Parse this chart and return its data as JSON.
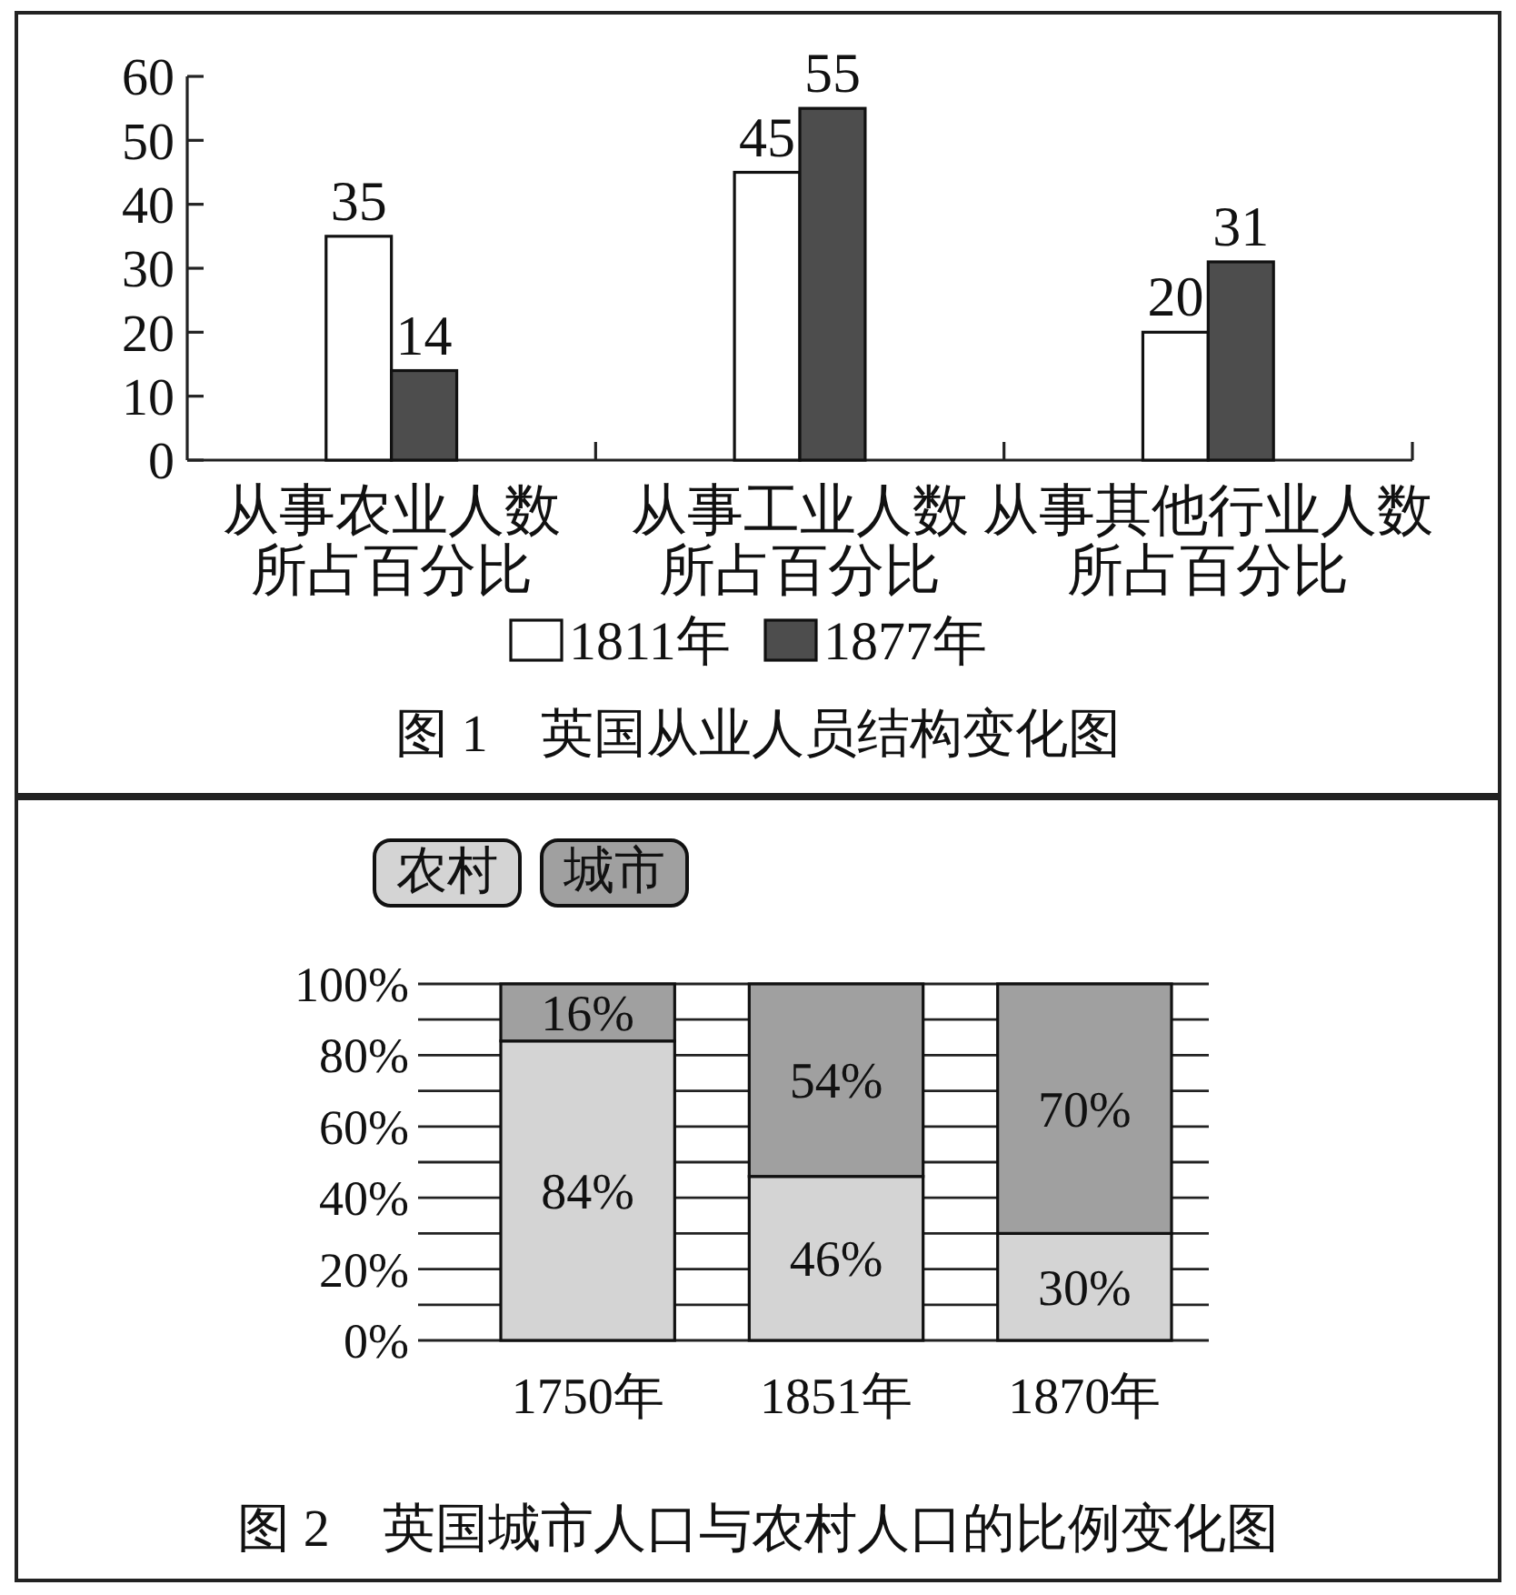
{
  "chart_data": [
    {
      "type": "bar",
      "title": "图 1　英国从业人员结构变化图",
      "categories": [
        "从事农业人数所占百分比",
        "从事工业人数所占百分比",
        "从事其他行业人数所占百分比"
      ],
      "series": [
        {
          "name": "1811年",
          "color": "#ffffff",
          "values": [
            35,
            45,
            20
          ]
        },
        {
          "name": "1877年",
          "color": "#4d4d4d",
          "values": [
            14,
            55,
            31
          ]
        }
      ],
      "ylim": [
        0,
        60
      ],
      "yticks": [
        0,
        10,
        20,
        30,
        40,
        50,
        60
      ],
      "data_labels": true,
      "legend": "bottom",
      "grid": false
    },
    {
      "type": "bar",
      "stacked": true,
      "title": "图 2　英国城市人口与农村人口的比例变化图",
      "categories": [
        "1750年",
        "1851年",
        "1870年"
      ],
      "series": [
        {
          "name": "农村",
          "color": "#d4d4d4",
          "values": [
            84,
            46,
            30
          ],
          "value_labels": [
            "84%",
            "46%",
            "30%"
          ]
        },
        {
          "name": "城市",
          "color": "#a0a0a0",
          "values": [
            16,
            54,
            70
          ],
          "value_labels": [
            "16%",
            "54%",
            "70%"
          ]
        }
      ],
      "ylim": [
        0,
        100
      ],
      "yticks": [
        {
          "value": 0,
          "label": "0%"
        },
        {
          "value": 10,
          "label": null
        },
        {
          "value": 20,
          "label": "20%"
        },
        {
          "value": 30,
          "label": null
        },
        {
          "value": 40,
          "label": "40%"
        },
        {
          "value": 50,
          "label": null
        },
        {
          "value": 60,
          "label": "60%"
        },
        {
          "value": 70,
          "label": null
        },
        {
          "value": 80,
          "label": "80%"
        },
        {
          "value": 90,
          "label": null
        },
        {
          "value": 100,
          "label": "100%"
        }
      ],
      "grid": "y",
      "legend": "top left"
    }
  ]
}
